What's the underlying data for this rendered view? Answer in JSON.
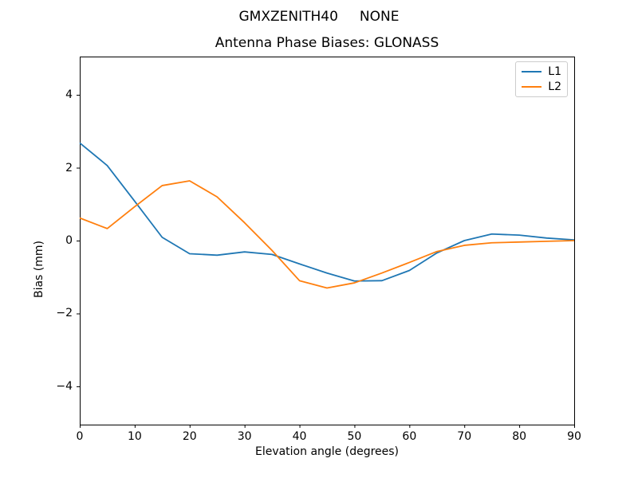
{
  "figure": {
    "suptitle": "GMXZENITH40     NONE",
    "title": "Antenna Phase Biases: GLONASS"
  },
  "chart_data": {
    "type": "line",
    "suptitle": "GMXZENITH40     NONE",
    "title": "Antenna Phase Biases: GLONASS",
    "xlabel": "Elevation angle (degrees)",
    "ylabel": "Bias (mm)",
    "xlim": [
      0,
      90
    ],
    "ylim": [
      -5.05,
      5.05
    ],
    "xticks": [
      0,
      10,
      20,
      30,
      40,
      50,
      60,
      70,
      80,
      90
    ],
    "yticks": [
      4,
      2,
      0,
      -2,
      -4
    ],
    "grid": false,
    "legend_position": "upper right",
    "background": "#ffffff",
    "x": [
      0,
      5,
      10,
      15,
      20,
      25,
      30,
      35,
      40,
      45,
      50,
      55,
      60,
      65,
      70,
      75,
      80,
      85,
      90
    ],
    "series": [
      {
        "name": "L1",
        "color": "#1f77b4",
        "values": [
          2.68,
          2.06,
          1.08,
          0.09,
          -0.36,
          -0.4,
          -0.31,
          -0.38,
          -0.64,
          -0.89,
          -1.11,
          -1.1,
          -0.82,
          -0.34,
          0.0,
          0.18,
          0.15,
          0.07,
          0.02
        ]
      },
      {
        "name": "L2",
        "color": "#ff7f0e",
        "values": [
          0.62,
          0.33,
          0.93,
          1.51,
          1.64,
          1.2,
          0.49,
          -0.27,
          -1.1,
          -1.3,
          -1.16,
          -0.89,
          -0.6,
          -0.3,
          -0.13,
          -0.06,
          -0.04,
          -0.02,
          0.0
        ]
      }
    ]
  }
}
